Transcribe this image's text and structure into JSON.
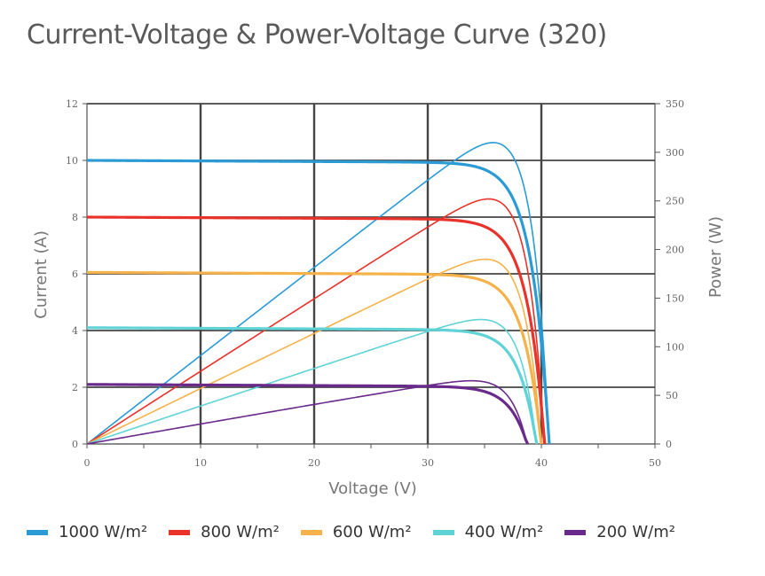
{
  "chart_data": {
    "type": "line",
    "title": "Current-Voltage & Power-Voltage Curve (320)",
    "xlabel": "Voltage (V)",
    "ylabel_left": "Current (A)",
    "ylabel_right": "Power (W)",
    "xlim": [
      0,
      50
    ],
    "ylim_left": [
      0,
      12
    ],
    "ylim_right": [
      0,
      350
    ],
    "x_ticks": [
      "0",
      "10",
      "20",
      "30",
      "40",
      "50"
    ],
    "y_left_ticks": [
      "0",
      "2",
      "4",
      "6",
      "8",
      "10",
      "12"
    ],
    "y_right_ticks": [
      "0",
      "50",
      "100",
      "150",
      "200",
      "250",
      "300",
      "350"
    ],
    "grid": true,
    "legend_position": "bottom",
    "series": [
      {
        "name": "1000 W/m²",
        "color": "#2a9bd4",
        "isc": 10.0,
        "voc": 40.7,
        "pmax": 310,
        "vmp": 33.5
      },
      {
        "name": "800 W/m²",
        "color": "#e8322a",
        "isc": 8.0,
        "voc": 40.3,
        "pmax": 252,
        "vmp": 33.8
      },
      {
        "name": "600 W/m²",
        "color": "#f5b24a",
        "isc": 6.05,
        "voc": 40.0,
        "pmax": 190,
        "vmp": 34.0
      },
      {
        "name": "400 W/m²",
        "color": "#5fd3d6",
        "isc": 4.1,
        "voc": 39.6,
        "pmax": 128,
        "vmp": 34.2
      },
      {
        "name": "200 W/m²",
        "color": "#6a2a8c",
        "isc": 2.1,
        "voc": 38.8,
        "pmax": 65,
        "vmp": 34.3
      }
    ]
  }
}
